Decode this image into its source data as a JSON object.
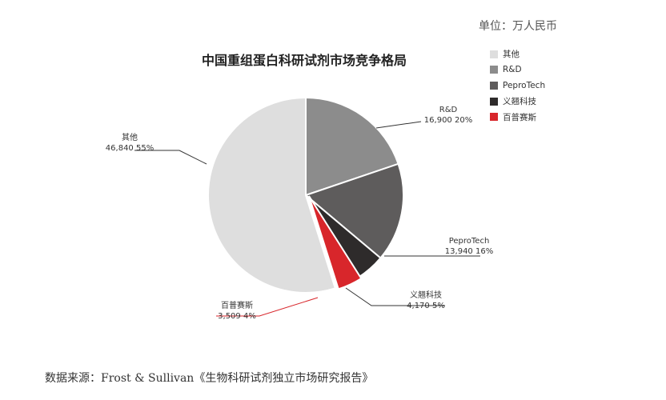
{
  "unit_label": "单位：万人民币",
  "source_text": "数据来源：Frost & Sullivan《生物科研试剂独立市场研究报告》",
  "chart_data": {
    "type": "pie",
    "title": "中国重组蛋白科研试剂市场竞争格局",
    "slices": [
      {
        "name": "R&D",
        "value": 16900,
        "value_label": "16,900",
        "percent_label": "20%",
        "color": "#8c8c8c"
      },
      {
        "name": "PeproTech",
        "value": 13940,
        "value_label": "13,940",
        "percent_label": "16%",
        "color": "#5e5c5c"
      },
      {
        "name": "义翘科技",
        "value": 4170,
        "value_label": "4,170",
        "percent_label": "5%",
        "color": "#2e2b2b"
      },
      {
        "name": "百普赛斯",
        "value": 3509,
        "value_label": "3,509",
        "percent_label": "4%",
        "color": "#d8262b"
      },
      {
        "name": "其他",
        "value": 46840,
        "value_label": "46,840",
        "percent_label": "55%",
        "color": "#dedede"
      }
    ],
    "legend": [
      "其他",
      "R&D",
      "PeproTech",
      "义翘科技",
      "百普赛斯"
    ],
    "legend_placement": "top-right",
    "start_angle_deg": -90,
    "direction": "clockwise"
  }
}
